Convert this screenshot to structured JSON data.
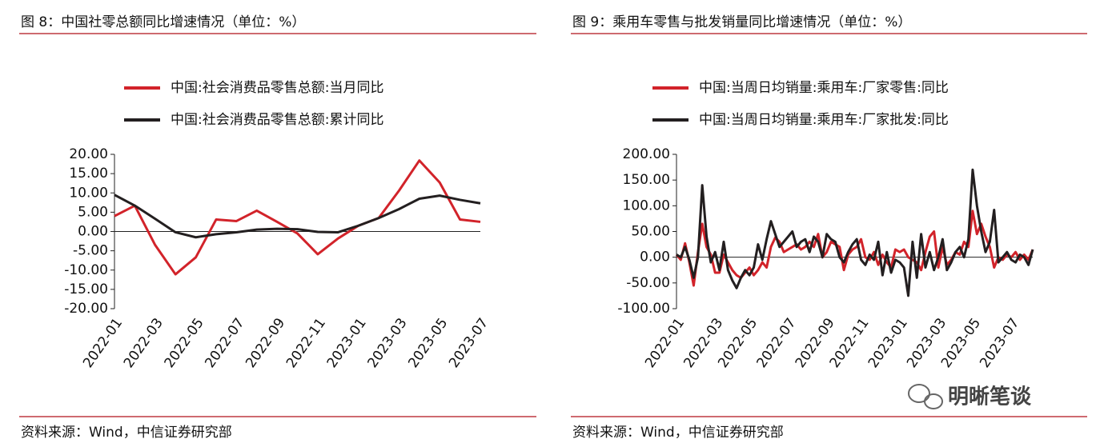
{
  "chart_data": [
    {
      "type": "line",
      "title": "图 8：中国社零总额同比增速情况（单位：%）",
      "source": "资料来源：Wind，中信证券研究部",
      "categories": [
        "2022-01",
        null,
        "2022-03",
        null,
        "2022-05",
        null,
        "2022-07",
        null,
        "2022-09",
        null,
        "2022-11",
        null,
        "2023-01",
        null,
        "2023-03",
        null,
        "2023-05",
        null,
        "2023-07"
      ],
      "series": [
        {
          "name": "中国:社会消费品零售总额:当月同比",
          "color": "#d2232a",
          "values": [
            4.0,
            6.7,
            -3.5,
            -11.1,
            -6.7,
            3.1,
            2.7,
            5.4,
            2.5,
            -0.5,
            -5.9,
            -1.8,
            1.5,
            3.5,
            10.6,
            18.4,
            12.7,
            3.1,
            2.5
          ]
        },
        {
          "name": "中国:社会消费品零售总额:累计同比",
          "color": "#231f20",
          "values": [
            9.5,
            6.7,
            3.3,
            -0.2,
            -1.5,
            -0.7,
            -0.2,
            0.5,
            0.7,
            0.6,
            -0.1,
            -0.2,
            1.5,
            3.5,
            5.8,
            8.5,
            9.3,
            8.2,
            7.3
          ]
        }
      ],
      "ylim": [
        -20,
        20
      ],
      "yticks": [
        {
          "value": -20,
          "label": "-20.00"
        },
        {
          "value": -15,
          "label": "-15.00"
        },
        {
          "value": -10,
          "label": "-10.00"
        },
        {
          "value": -5,
          "label": "-5.00"
        },
        {
          "value": 0,
          "label": "0.00"
        },
        {
          "value": 5,
          "label": "5.00"
        },
        {
          "value": 10,
          "label": "10.00"
        },
        {
          "value": 15,
          "label": "15.00"
        },
        {
          "value": 20,
          "label": "20.00"
        }
      ]
    },
    {
      "type": "line",
      "title": "图 9：乘用车零售与批发销量同比增速情况（单位：%）",
      "source": "资料来源：Wind，中信证券研究部",
      "categories": [
        "2022-01",
        null,
        null,
        null,
        null,
        null,
        null,
        null,
        null,
        "2022-03",
        null,
        null,
        null,
        null,
        null,
        null,
        null,
        "2022-05",
        null,
        null,
        null,
        null,
        null,
        null,
        null,
        null,
        "2022-07",
        null,
        null,
        null,
        null,
        null,
        null,
        null,
        null,
        "2022-09",
        null,
        null,
        null,
        null,
        null,
        null,
        null,
        "2022-11",
        null,
        null,
        null,
        null,
        null,
        null,
        null,
        null,
        "2023-01",
        null,
        null,
        null,
        null,
        null,
        null,
        null,
        null,
        "2023-03",
        null,
        null,
        null,
        null,
        null,
        null,
        null,
        "2023-05",
        null,
        null,
        null,
        null,
        null,
        null,
        null,
        null,
        "2023-07",
        null,
        null,
        null,
        null,
        null
      ],
      "series": [
        {
          "name": "中国:当周日均销量:乘用车:厂家零售:同比",
          "color": "#d2232a",
          "values": [
            5,
            -5,
            27,
            -10,
            -55,
            10,
            65,
            20,
            5,
            -30,
            -30,
            5,
            -10,
            -25,
            -35,
            -40,
            -30,
            -20,
            -35,
            -25,
            -10,
            -20,
            20,
            38,
            30,
            10,
            15,
            20,
            25,
            15,
            20,
            30,
            20,
            45,
            0,
            10,
            30,
            25,
            20,
            -25,
            5,
            15,
            20,
            35,
            0,
            -5,
            10,
            -15,
            5,
            -10,
            -20,
            15,
            10,
            15,
            0,
            -5,
            -10,
            -25,
            10,
            40,
            50,
            -20,
            20,
            -15,
            -5,
            10,
            5,
            30,
            20,
            90,
            45,
            65,
            40,
            20,
            -20,
            0,
            -5,
            5,
            0,
            10,
            -5,
            5,
            -5,
            15
          ]
        },
        {
          "name": "中国:当周日均销量:乘用车:厂家批发:同比",
          "color": "#231f20",
          "values": [
            5,
            0,
            20,
            -5,
            -40,
            0,
            140,
            40,
            -10,
            10,
            -25,
            30,
            -25,
            -45,
            -60,
            -40,
            -25,
            -35,
            -20,
            25,
            -5,
            35,
            70,
            45,
            20,
            30,
            40,
            50,
            20,
            30,
            35,
            10,
            40,
            30,
            0,
            45,
            35,
            30,
            0,
            -10,
            10,
            25,
            35,
            -5,
            -15,
            5,
            -5,
            30,
            -35,
            10,
            -30,
            -5,
            -10,
            -20,
            -75,
            30,
            -40,
            45,
            -20,
            10,
            -25,
            0,
            35,
            -25,
            -10,
            10,
            20,
            0,
            35,
            170,
            100,
            50,
            10,
            30,
            92,
            -10,
            0,
            10,
            -5,
            -10,
            5,
            0,
            -15,
            15
          ]
        }
      ],
      "ylim": [
        -100,
        200
      ],
      "yticks": [
        {
          "value": -100,
          "label": "-100.00"
        },
        {
          "value": -50,
          "label": "-50.00"
        },
        {
          "value": 0,
          "label": "0.00"
        },
        {
          "value": 50,
          "label": "50.00"
        },
        {
          "value": 100,
          "label": "100.00"
        },
        {
          "value": 150,
          "label": "150.00"
        },
        {
          "value": 200,
          "label": "200.00"
        }
      ]
    }
  ],
  "watermark": "明晰笔谈"
}
